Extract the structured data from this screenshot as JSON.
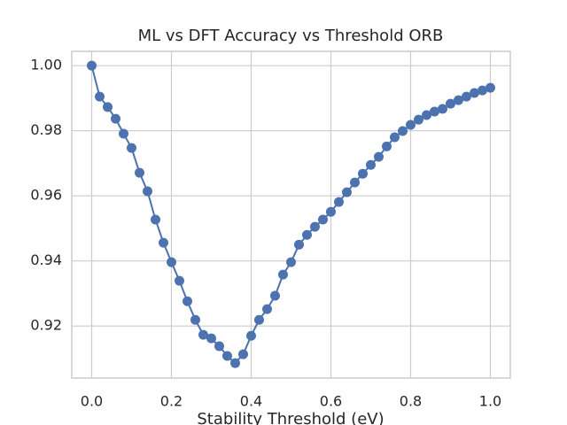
{
  "chart_data": {
    "type": "line",
    "title": "ML vs DFT Accuracy vs Threshold ORB",
    "x_label": "Stability Threshold (eV)",
    "x": [
      0.0,
      0.02,
      0.04,
      0.06,
      0.08,
      0.1,
      0.12,
      0.14,
      0.16,
      0.18,
      0.2,
      0.22,
      0.24,
      0.26,
      0.28,
      0.3,
      0.32,
      0.34,
      0.36,
      0.38,
      0.4,
      0.42,
      0.44,
      0.46,
      0.48,
      0.5,
      0.52,
      0.54,
      0.56,
      0.58,
      0.6,
      0.62,
      0.64,
      0.66,
      0.68,
      0.7,
      0.72,
      0.74,
      0.76,
      0.78,
      0.8,
      0.82,
      0.84,
      0.86,
      0.88,
      0.9,
      0.92,
      0.94,
      0.96,
      0.98,
      1.0
    ],
    "series": [
      {
        "color": "#4c72b0",
        "values": [
          1.0,
          0.9905,
          0.9873,
          0.9837,
          0.9791,
          0.9747,
          0.9671,
          0.9614,
          0.9527,
          0.9456,
          0.9396,
          0.9339,
          0.9276,
          0.9219,
          0.9173,
          0.9162,
          0.9138,
          0.9108,
          0.9086,
          0.9113,
          0.917,
          0.9219,
          0.9252,
          0.9293,
          0.9358,
          0.9396,
          0.945,
          0.948,
          0.9505,
          0.9527,
          0.9551,
          0.9581,
          0.9611,
          0.9641,
          0.9668,
          0.9695,
          0.972,
          0.9752,
          0.978,
          0.9799,
          0.9818,
          0.9834,
          0.9848,
          0.9859,
          0.9867,
          0.9883,
          0.9894,
          0.9905,
          0.9916,
          0.9924,
          0.9932
        ]
      }
    ],
    "xlim": [
      -0.05,
      1.05
    ],
    "xticks": [
      {
        "value": 0,
        "label": "0.0"
      },
      0.2,
      0.4,
      0.6,
      0.8,
      {
        "value": 1,
        "label": "1.0"
      }
    ],
    "ylim": [
      0.904,
      1.0044
    ],
    "yticks": [
      0.92,
      0.94,
      0.96,
      0.98,
      {
        "value": 1,
        "label": "1.00"
      }
    ],
    "grid": true
  }
}
